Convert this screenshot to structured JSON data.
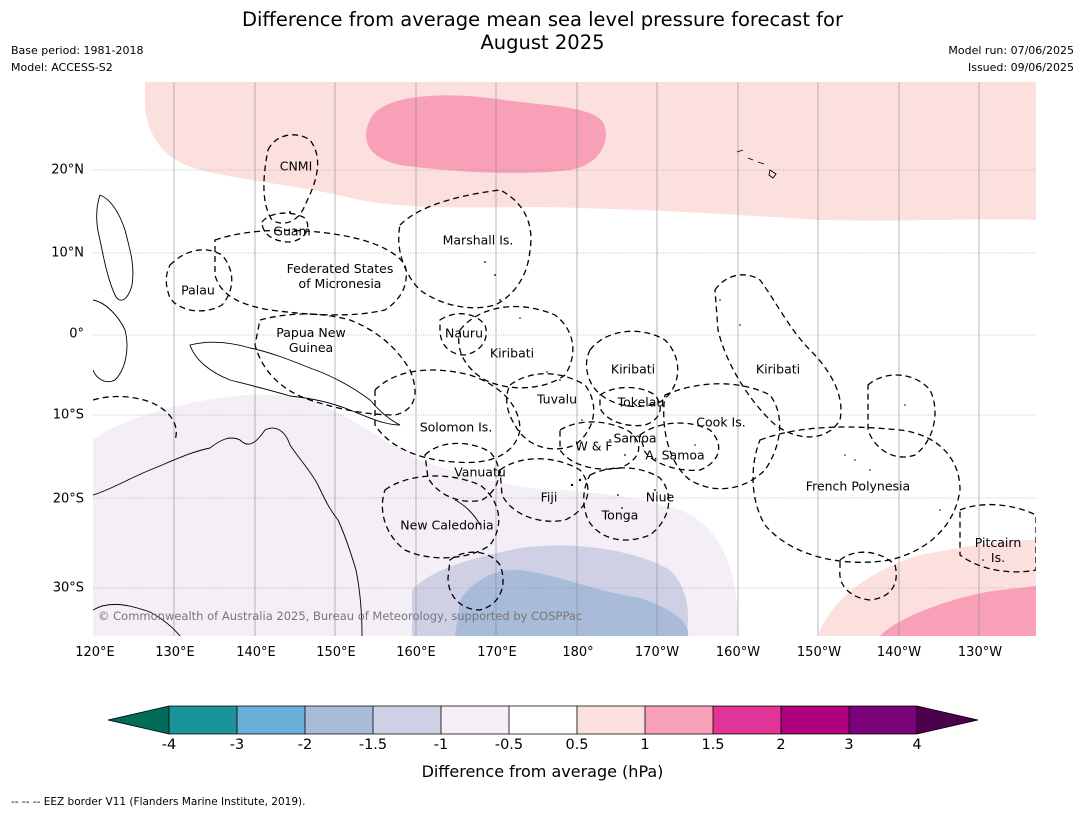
{
  "title": {
    "line1": "Difference from average mean sea level pressure forecast for",
    "line2": "August 2025"
  },
  "meta_left": {
    "base_period": "Base period: 1981-2018",
    "model": "Model: ACCESS-S2"
  },
  "meta_right": {
    "model_run": "Model run: 07/06/2025",
    "issued": "Issued: 09/06/2025"
  },
  "map": {
    "lat_labels": [
      "20°N",
      "10°N",
      "0°",
      "10°S",
      "20°S",
      "30°S"
    ],
    "lon_labels": [
      "120°E",
      "130°E",
      "140°E",
      "150°E",
      "160°E",
      "170°E",
      "180°",
      "170°W",
      "160°W",
      "150°W",
      "140°W",
      "130°W"
    ],
    "region_labels": {
      "cnmi": "CNMI",
      "guam": "Guam",
      "marshall": "Marshall Is.",
      "palau": "Palau",
      "fsm_line1": "Federated States",
      "fsm_line2": "of Micronesia",
      "png_line1": "Papua New",
      "png_line2": "Guinea",
      "nauru": "Nauru",
      "kiribati_w": "Kiribati",
      "kiribati_c": "Kiribati",
      "kiribati_e": "Kiribati",
      "tuvalu": "Tuvalu",
      "tokelau": "Tokelau",
      "solomon": "Solomon Is.",
      "wf": "W & F",
      "samoa": "Samoa",
      "asamoa": "A. Samoa",
      "cook": "Cook Is.",
      "vanuatu": "Vanuatu",
      "fiji": "Fiji",
      "niue": "Niue",
      "tonga": "Tonga",
      "new_caledonia": "New Caledonia",
      "french_polynesia": "French Polynesia",
      "pitcairn_line1": "Pitcairn",
      "pitcairn_line2": "Is."
    },
    "copyright": "© Commonwealth of Australia 2025, Bureau of Meteorology, supported by COSPPac"
  },
  "colorbar": {
    "ticks": [
      "-4",
      "-3",
      "-2",
      "-1.5",
      "-1",
      "-0.5",
      "0.5",
      "1",
      "1.5",
      "2",
      "3",
      "4"
    ],
    "colors": {
      "lt_-4": "#006b58",
      "-4_-3": "#1a9399",
      "-3_-2": "#6aaed6",
      "-2_-1.5": "#a8bbd8",
      "-1.5_-1": "#cfd0e6",
      "-1_-0.5": "#f4eef6",
      "-0.5_0.5": "#ffffff",
      "0.5_1": "#fce0dd",
      "1_1.5": "#f9a0b9",
      "1.5_2": "#de3597",
      "2_3": "#ae017e",
      "3_4": "#7a0177",
      "gt_4": "#4d004b"
    },
    "label": "Difference from average (hPa)"
  },
  "footer": "-- -- -- EEZ border V11 (Flanders Marine Institute, 2019)."
}
